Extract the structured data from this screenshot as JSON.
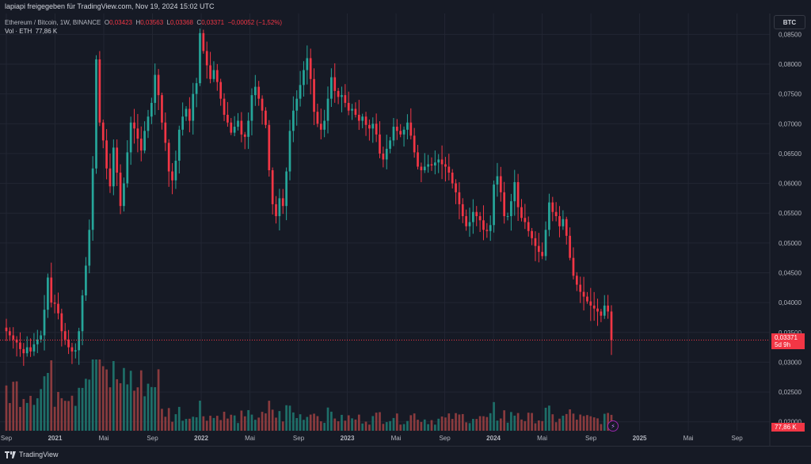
{
  "header": {
    "published": "lapiapi freigegeben für TradingView.com, Nov 19, 2024 15:02 UTC"
  },
  "legend": {
    "pair": "Ethereum / Bitcoin, 1W, BINANCE",
    "o_label": "O",
    "o_val": "0,03423",
    "h_label": "H",
    "h_val": "0,03563",
    "l_label": "L",
    "l_val": "0,03368",
    "c_label": "C",
    "c_val": "0,03371",
    "change": "−0,00052 (−1,52%)",
    "vol_label": "Vol · ETH",
    "vol_val": "77,86 K"
  },
  "symbol_button": "BTC",
  "price_tag": {
    "price": "0,03371",
    "countdown": "5d 9h"
  },
  "volume_tag": "77,86 K",
  "footer": {
    "brand": "TradingView"
  },
  "colors": {
    "up": "#26a69a",
    "down": "#f23645",
    "vol_up": "#1e6e68",
    "vol_down": "#8a3b3e",
    "grid": "#222633",
    "axis_text": "#b2b5be"
  },
  "chart_data": {
    "type": "candlestick",
    "interval": "1W",
    "y_axis": {
      "min": 0.0185,
      "max": 0.0885,
      "side": "right",
      "ticks": [
        "0,02000",
        "0,02500",
        "0,03000",
        "0,03500",
        "0,04000",
        "0,04500",
        "0,05000",
        "0,05500",
        "0,06000",
        "0,06500",
        "0,07000",
        "0,07500",
        "0,08000",
        "0,08500"
      ],
      "tick_values": [
        0.02,
        0.025,
        0.03,
        0.035,
        0.04,
        0.045,
        0.05,
        0.055,
        0.06,
        0.065,
        0.07,
        0.075,
        0.08,
        0.085
      ]
    },
    "x_axis": {
      "range": [
        "2020-09",
        "2025-10"
      ],
      "ticks": [
        {
          "label": "Sep",
          "date": "2020-09"
        },
        {
          "label": "2021",
          "date": "2021-01"
        },
        {
          "label": "Mai",
          "date": "2021-05"
        },
        {
          "label": "Sep",
          "date": "2021-09"
        },
        {
          "label": "2022",
          "date": "2022-01"
        },
        {
          "label": "Mai",
          "date": "2022-05"
        },
        {
          "label": "Sep",
          "date": "2022-09"
        },
        {
          "label": "2023",
          "date": "2023-01"
        },
        {
          "label": "Mai",
          "date": "2023-05"
        },
        {
          "label": "Sep",
          "date": "2023-09"
        },
        {
          "label": "2024",
          "date": "2024-01"
        },
        {
          "label": "Mai",
          "date": "2024-05"
        },
        {
          "label": "Sep",
          "date": "2024-09"
        },
        {
          "label": "2025",
          "date": "2025-01"
        },
        {
          "label": "Mai",
          "date": "2025-05"
        },
        {
          "label": "Sep",
          "date": "2025-09"
        }
      ]
    },
    "last_price": 0.03371,
    "closes": [
      0.0352,
      0.0345,
      0.0338,
      0.0333,
      0.0322,
      0.0315,
      0.0325,
      0.0318,
      0.033,
      0.0338,
      0.0345,
      0.0388,
      0.0442,
      0.04,
      0.0398,
      0.0382,
      0.0352,
      0.0338,
      0.0325,
      0.0318,
      0.032,
      0.0352,
      0.0412,
      0.0462,
      0.0522,
      0.0625,
      0.0808,
      0.0702,
      0.0672,
      0.0625,
      0.0595,
      0.066,
      0.0618,
      0.0562,
      0.06,
      0.0652,
      0.0702,
      0.0692,
      0.0675,
      0.0655,
      0.0688,
      0.0712,
      0.0735,
      0.0782,
      0.0748,
      0.0702,
      0.0668,
      0.062,
      0.0605,
      0.0638,
      0.069,
      0.0712,
      0.0725,
      0.0705,
      0.075,
      0.0768,
      0.0852,
      0.0822,
      0.0798,
      0.0775,
      0.079,
      0.077,
      0.0742,
      0.0715,
      0.0702,
      0.0685,
      0.0695,
      0.0705,
      0.0682,
      0.0678,
      0.0705,
      0.0748,
      0.0762,
      0.0742,
      0.0722,
      0.0698,
      0.0622,
      0.0565,
      0.0545,
      0.0575,
      0.0562,
      0.062,
      0.0688,
      0.0722,
      0.0742,
      0.0765,
      0.079,
      0.081,
      0.0775,
      0.072,
      0.07,
      0.069,
      0.0705,
      0.0742,
      0.0778,
      0.0755,
      0.0745,
      0.0748,
      0.0735,
      0.0722,
      0.0725,
      0.0715,
      0.0705,
      0.0712,
      0.0698,
      0.0692,
      0.07,
      0.0682,
      0.065,
      0.064,
      0.0658,
      0.0672,
      0.0695,
      0.0688,
      0.0682,
      0.069,
      0.0702,
      0.068,
      0.0652,
      0.0628,
      0.0622,
      0.0628,
      0.0632,
      0.063,
      0.0635,
      0.064,
      0.0632,
      0.0628,
      0.0618,
      0.06,
      0.0585,
      0.0565,
      0.0545,
      0.0528,
      0.0535,
      0.0552,
      0.0545,
      0.0538,
      0.0522,
      0.052,
      0.053,
      0.0598,
      0.0612,
      0.0585,
      0.0545,
      0.0545,
      0.057,
      0.0602,
      0.056,
      0.0542,
      0.0535,
      0.052,
      0.0508,
      0.0495,
      0.0485,
      0.0478,
      0.0522,
      0.0568,
      0.0552,
      0.0545,
      0.0528,
      0.054,
      0.0512,
      0.0475,
      0.0445,
      0.043,
      0.0418,
      0.041,
      0.0402,
      0.0395,
      0.039,
      0.0385,
      0.0378,
      0.0395,
      0.0385,
      0.0337
    ]
  }
}
